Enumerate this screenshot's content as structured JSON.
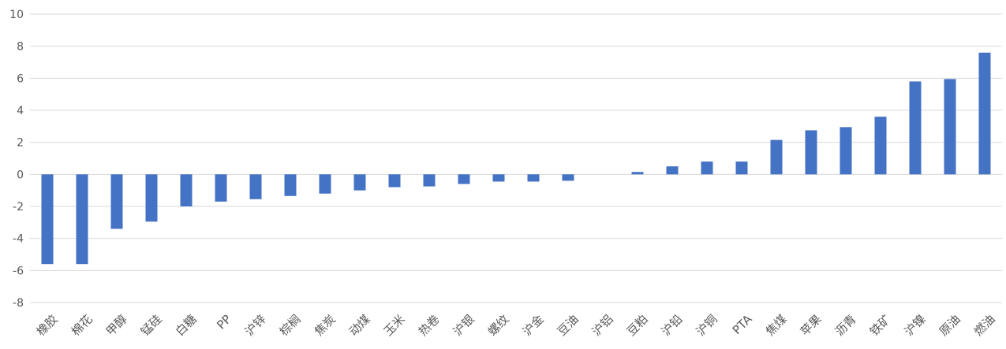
{
  "chart_data": {
    "type": "bar",
    "categories": [
      "橡胶",
      "棉花",
      "甲醇",
      "锰硅",
      "白糖",
      "PP",
      "沪锌",
      "棕榈",
      "焦炭",
      "动煤",
      "玉米",
      "热卷",
      "沪银",
      "螺纹",
      "沪金",
      "豆油",
      "沪铝",
      "豆粕",
      "沪铅",
      "沪铜",
      "PTA",
      "焦煤",
      "苹果",
      "沥青",
      "铁矿",
      "沪镍",
      "原油",
      "燃油"
    ],
    "series": [
      {
        "values": [
          -5.6,
          -5.6,
          -3.4,
          -2.95,
          -2.0,
          -1.7,
          -1.55,
          -1.35,
          -1.2,
          -1.0,
          -0.8,
          -0.75,
          -0.6,
          -0.45,
          -0.45,
          -0.4,
          0.0,
          0.15,
          0.5,
          0.8,
          0.8,
          2.15,
          2.75,
          2.95,
          3.6,
          5.8,
          5.95,
          7.6
        ],
        "color": "#4472c4"
      }
    ],
    "yticks": [
      10,
      8,
      6,
      4,
      2,
      0,
      -2,
      -4,
      -6,
      -8
    ],
    "ylim": [
      -8,
      10
    ],
    "grid": true,
    "title": "",
    "xlabel": "",
    "ylabel": "",
    "x_tick_rotation_deg": -45
  }
}
